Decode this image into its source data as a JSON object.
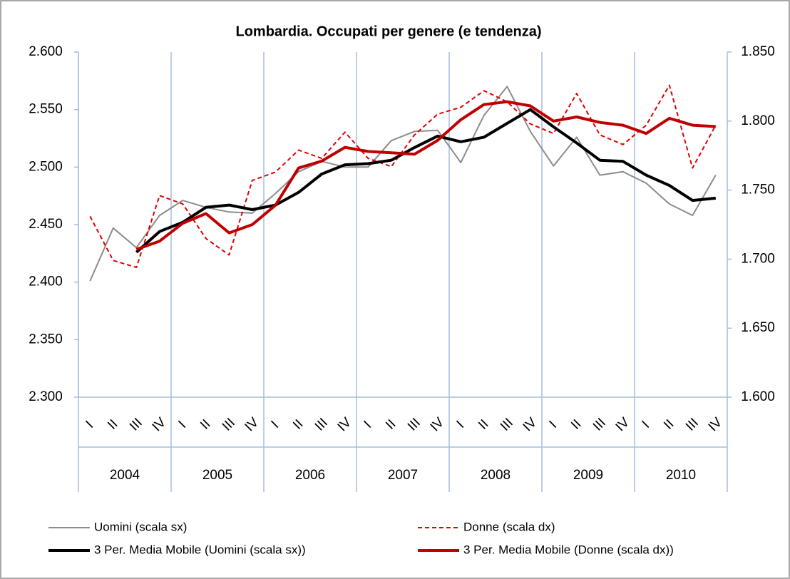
{
  "chart_data": {
    "type": "line",
    "title": "Lombardia. Occupati  per genere (e tendenza)",
    "categories": [
      "I",
      "II",
      "III",
      "IV",
      "I",
      "II",
      "III",
      "IV",
      "I",
      "II",
      "III",
      "IV",
      "I",
      "II",
      "III",
      "IV",
      "I",
      "II",
      "III",
      "IV",
      "I",
      "II",
      "III",
      "IV",
      "I",
      "II",
      "III",
      "IV"
    ],
    "groups": [
      "2004",
      "2005",
      "2006",
      "2007",
      "2008",
      "2009",
      "2010"
    ],
    "ylim": [
      2300,
      2600
    ],
    "yticks": [
      {
        "value": 2300,
        "label": "2.300"
      },
      {
        "value": 2350,
        "label": "2.350"
      },
      {
        "value": 2400,
        "label": "2.400"
      },
      {
        "value": 2450,
        "label": "2.450"
      },
      {
        "value": 2500,
        "label": "2.500"
      },
      {
        "value": 2550,
        "label": "2.550"
      },
      {
        "value": 2600,
        "label": "2.600"
      }
    ],
    "y2lim": [
      1600,
      1850
    ],
    "y2ticks": [
      {
        "value": 1600,
        "label": "1.600"
      },
      {
        "value": 1650,
        "label": "1.650"
      },
      {
        "value": 1700,
        "label": "1.700"
      },
      {
        "value": 1750,
        "label": "1.750"
      },
      {
        "value": 1800,
        "label": "1.800"
      },
      {
        "value": 1850,
        "label": "1.850"
      }
    ],
    "legend": "bottom",
    "series": [
      {
        "name": "Uomini (scala sx)",
        "color": "#8c8c8c",
        "width": 2,
        "dash": false,
        "axis": "y",
        "values": [
          2401,
          2447,
          2430,
          2458,
          2471,
          2465,
          2461,
          2460,
          2477,
          2496,
          2505,
          2500,
          2500,
          2523,
          2531,
          2532,
          2504,
          2545,
          2570,
          2531,
          2501,
          2526,
          2493,
          2496,
          2486,
          2468,
          2458,
          2493
        ]
      },
      {
        "name": "Donne (scala dx)",
        "color": "#e00000",
        "width": 2,
        "dash": true,
        "axis": "y2",
        "values": [
          1731,
          1699,
          1694,
          1746,
          1740,
          1715,
          1703,
          1757,
          1763,
          1779,
          1773,
          1792,
          1773,
          1767,
          1790,
          1805,
          1810,
          1822,
          1814,
          1798,
          1791,
          1820,
          1790,
          1783,
          1797,
          1826,
          1766,
          1797
        ]
      },
      {
        "name": "3 Per. Media Mobile (Uomini (scala sx))",
        "color": "#000000",
        "width": 4,
        "dash": false,
        "axis": "y",
        "values": [
          null,
          null,
          2426,
          2444,
          2452,
          2465,
          2467,
          2463,
          2467,
          2478,
          2494,
          2502,
          2503,
          2506,
          2517,
          2527,
          2522,
          2526,
          2538,
          2550,
          2535,
          2521,
          2506,
          2505,
          2493,
          2484,
          2471,
          2473
        ]
      },
      {
        "name": "3 Per. Media Mobile (Donne (scala dx))",
        "color": "#c00000",
        "width": 4,
        "dash": false,
        "axis": "y2",
        "values": [
          null,
          null,
          1707,
          1713,
          1726,
          1733,
          1719,
          1725,
          1739,
          1766,
          1771,
          1781,
          1778,
          1777,
          1776,
          1786,
          1801,
          1812,
          1814,
          1811,
          1800,
          1803,
          1799,
          1797,
          1791,
          1802,
          1797,
          1796
        ]
      }
    ]
  }
}
